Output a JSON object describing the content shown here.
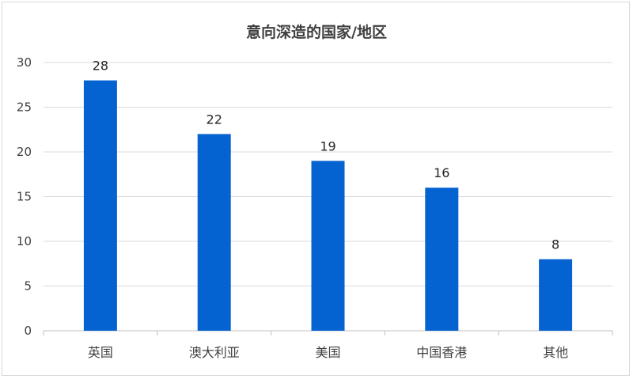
{
  "chart_data": {
    "type": "bar",
    "title": "意向深造的国家/地区",
    "categories": [
      "英国",
      "澳大利亚",
      "美国",
      "中国香港",
      "其他"
    ],
    "values": [
      28,
      22,
      19,
      16,
      8
    ],
    "data_labels": [
      "28",
      "22",
      "19",
      "16",
      "8"
    ],
    "ylim": [
      0,
      30
    ],
    "yticks": [
      0,
      5,
      10,
      15,
      20,
      25,
      30
    ],
    "ytick_labels": [
      "0",
      "5",
      "10",
      "15",
      "20",
      "25",
      "30"
    ],
    "grid": true,
    "legend": "none",
    "colors": {
      "bar": "#0563D1",
      "grid": "#d9d9d9",
      "axis": "#bfbfbf",
      "text": "#404040"
    }
  }
}
